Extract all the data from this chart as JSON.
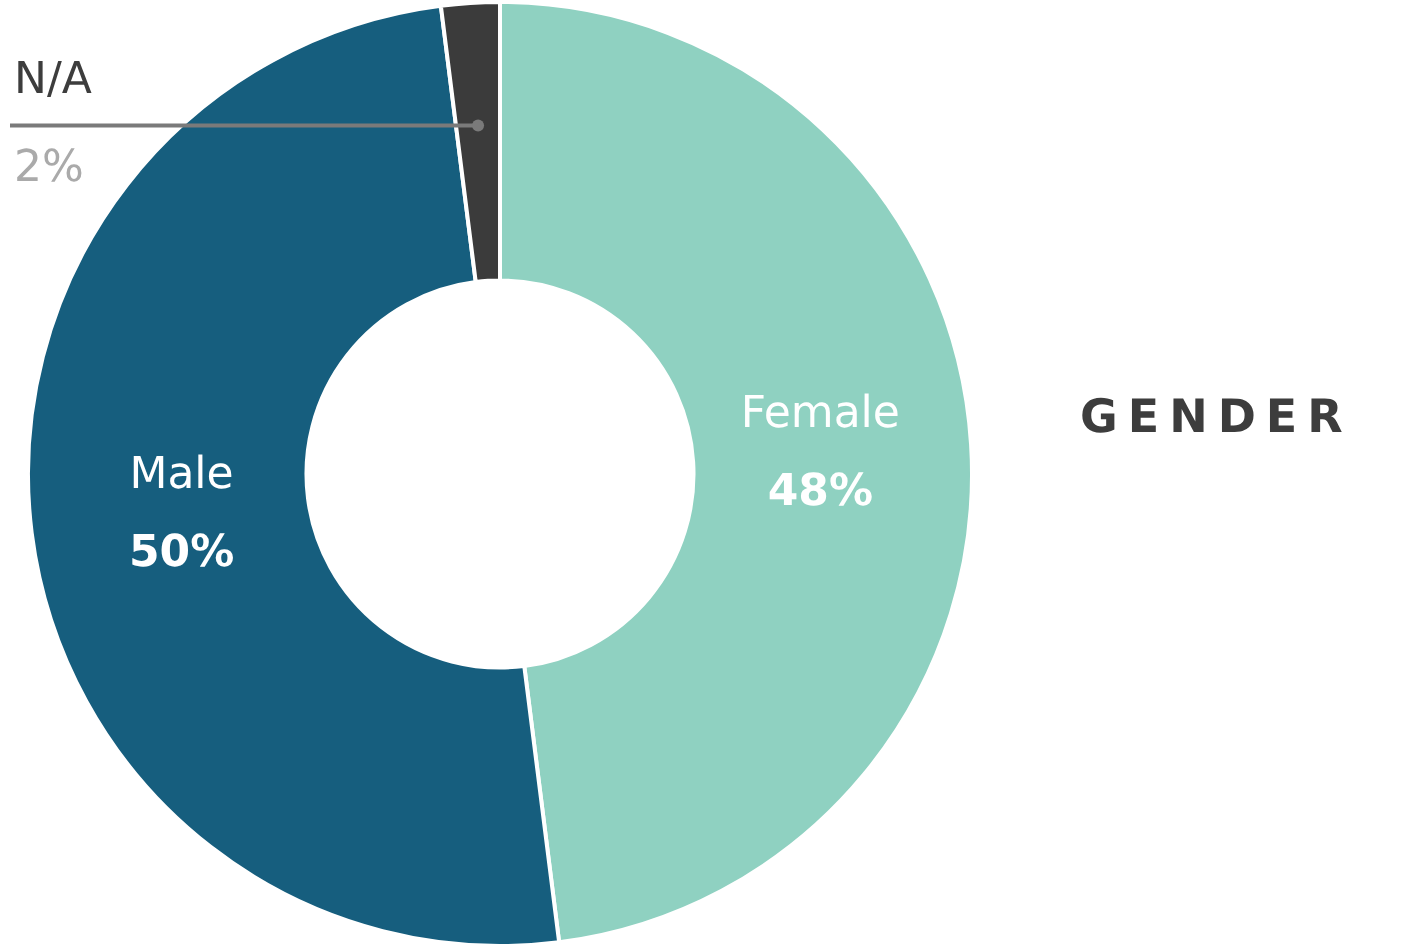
{
  "chart_data": {
    "type": "donut",
    "title": "GENDER",
    "categories": [
      "Female",
      "Male",
      "N/A"
    ],
    "values": [
      48,
      50,
      2
    ],
    "colors": [
      "#8fd1c1",
      "#165e7e",
      "#3b3b3b"
    ],
    "value_labels": [
      "48%",
      "50%",
      "2%"
    ],
    "legend": false
  }
}
